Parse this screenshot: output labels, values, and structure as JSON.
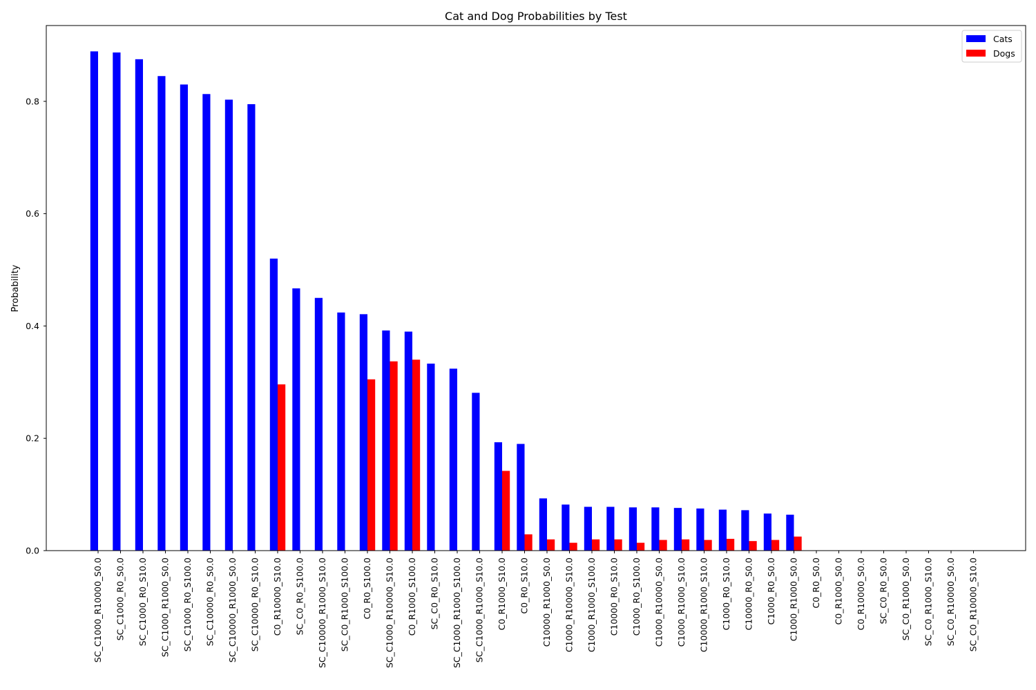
{
  "chart_data": {
    "type": "bar",
    "title": "Cat and Dog Probabilities by Test",
    "xlabel": "",
    "ylabel": "Probability",
    "ylim": [
      0,
      0.935
    ],
    "yticks": [
      0.0,
      0.2,
      0.4,
      0.6,
      0.8
    ],
    "ytick_labels": [
      "0.0",
      "0.2",
      "0.4",
      "0.6",
      "0.8"
    ],
    "grid": false,
    "legend_position": "top-right",
    "categories": [
      "SC_C1000_R10000_S0.0",
      "SC_C1000_R0_S0.0",
      "SC_C1000_R0_S10.0",
      "SC_C1000_R1000_S0.0",
      "SC_C1000_R0_S100.0",
      "SC_C10000_R0_S0.0",
      "SC_C10000_R1000_S0.0",
      "SC_C10000_R0_S10.0",
      "C0_R10000_S10.0",
      "SC_C0_R0_S100.0",
      "SC_C10000_R1000_S10.0",
      "SC_C0_R1000_S100.0",
      "C0_R0_S100.0",
      "SC_C1000_R10000_S10.0",
      "C0_R1000_S100.0",
      "SC_C0_R0_S10.0",
      "SC_C1000_R1000_S100.0",
      "SC_C1000_R1000_S10.0",
      "C0_R1000_S10.0",
      "C0_R0_S10.0",
      "C10000_R1000_S0.0",
      "C1000_R10000_S10.0",
      "C1000_R1000_S100.0",
      "C10000_R0_S10.0",
      "C1000_R0_S100.0",
      "C1000_R10000_S0.0",
      "C1000_R1000_S10.0",
      "C10000_R1000_S10.0",
      "C1000_R0_S10.0",
      "C10000_R0_S0.0",
      "C1000_R0_S0.0",
      "C1000_R1000_S0.0",
      "C0_R0_S0.0",
      "C0_R1000_S0.0",
      "C0_R10000_S0.0",
      "SC_C0_R0_S0.0",
      "SC_C0_R1000_S0.0",
      "SC_C0_R1000_S10.0",
      "SC_C0_R10000_S0.0",
      "SC_C0_R10000_S10.0"
    ],
    "series": [
      {
        "name": "Cats",
        "color": "#0000ff",
        "values": [
          0.889,
          0.887,
          0.875,
          0.845,
          0.83,
          0.813,
          0.803,
          0.795,
          0.52,
          0.467,
          0.45,
          0.424,
          0.421,
          0.392,
          0.39,
          0.333,
          0.324,
          0.281,
          0.193,
          0.19,
          0.093,
          0.082,
          0.078,
          0.078,
          0.077,
          0.077,
          0.076,
          0.075,
          0.073,
          0.072,
          0.066,
          0.064,
          0.0,
          0.0,
          0.0,
          0.0,
          0.0,
          0.0,
          0.0,
          0.0
        ]
      },
      {
        "name": "Dogs",
        "color": "#ff0000",
        "values": [
          0.0,
          0.0,
          0.0,
          0.0,
          0.0,
          0.0,
          0.0,
          0.0,
          0.296,
          0.0,
          0.0,
          0.0,
          0.305,
          0.337,
          0.34,
          0.0,
          0.0,
          0.0,
          0.142,
          0.029,
          0.02,
          0.014,
          0.02,
          0.02,
          0.014,
          0.019,
          0.02,
          0.019,
          0.021,
          0.017,
          0.019,
          0.025,
          0.0,
          0.0,
          0.0,
          0.0,
          0.0,
          0.0,
          0.0,
          0.0
        ]
      }
    ]
  }
}
